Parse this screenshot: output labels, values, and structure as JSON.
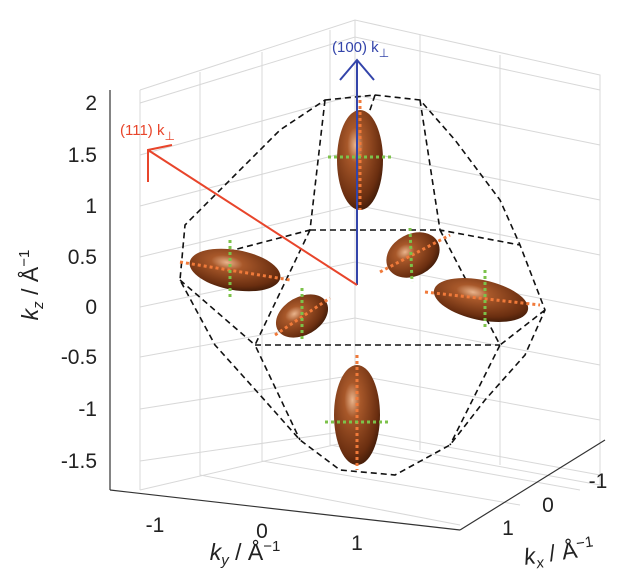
{
  "axes": {
    "z": {
      "symbol": "k",
      "subscript": "z",
      "unit": " / Å",
      "exponent": "−1",
      "ticks": [
        "2",
        "1.5",
        "1",
        "0.5",
        "0",
        "-0.5",
        "-1",
        "-1.5"
      ]
    },
    "y": {
      "symbol": "k",
      "subscript": "y",
      "unit": " / Å",
      "exponent": "−1",
      "ticks": [
        "-1",
        "0",
        "1"
      ]
    },
    "x": {
      "symbol": "k",
      "subscript": "x",
      "unit": " / Å",
      "exponent": "−1",
      "ticks": [
        "-1",
        "0",
        "1"
      ]
    }
  },
  "annotations": [
    {
      "text": "(100) k",
      "subscript": "⊥"
    },
    {
      "text": "(111) k",
      "subscript": "⊥"
    }
  ]
}
